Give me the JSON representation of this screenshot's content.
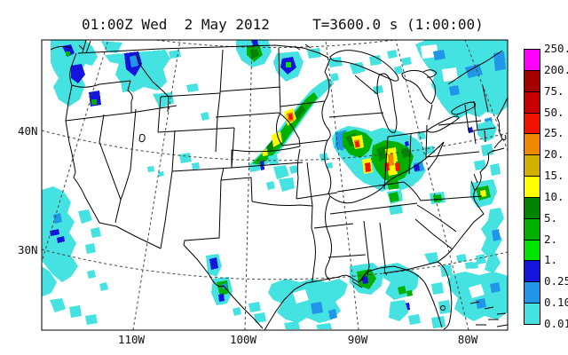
{
  "title": "01:00Z Wed  2 May 2012     T=3600.0 s (1:00:00)",
  "y_axis": {
    "labels": [
      {
        "text": "40N"
      },
      {
        "text": "30N"
      }
    ]
  },
  "x_axis": {
    "labels": [
      {
        "text": "110W"
      },
      {
        "text": "100W"
      },
      {
        "text": "90W"
      },
      {
        "text": "80W"
      }
    ]
  },
  "colorbar": {
    "tick_labels": [
      "250.",
      "200.",
      "75.",
      "50.",
      "25.",
      "20.",
      "15.",
      "10.",
      "5.",
      "2.",
      "1.",
      "0.25",
      "0.10",
      "0.01"
    ],
    "colors_top_to_bottom": [
      "#ff00ff",
      "#a40000",
      "#c60000",
      "#f01400",
      "#f08800",
      "#d2b000",
      "#ffff00",
      "#008400",
      "#00b000",
      "#00e400",
      "#1414dc",
      "#2196e8",
      "#45e2e2"
    ]
  },
  "map_colors": {
    "coastline": "#000000",
    "graticule": "#444444",
    "background": "#ffffff"
  }
}
